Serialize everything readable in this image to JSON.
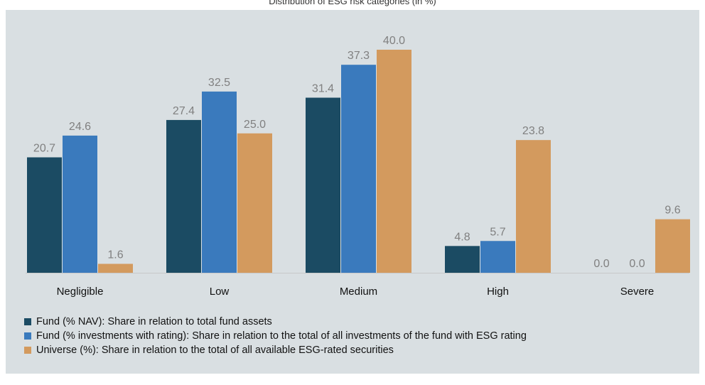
{
  "header": {
    "caption": "Distribution of ESG risk categories (in %)"
  },
  "chart_data": {
    "type": "bar",
    "categories": [
      "Negligible",
      "Low",
      "Medium",
      "High",
      "Severe"
    ],
    "series": [
      {
        "name": "Fund (% NAV): Share in relation to total fund assets",
        "color": "#1b4b63",
        "values": [
          20.7,
          27.4,
          31.4,
          4.8,
          0.0
        ],
        "labels": [
          "20.7",
          "27.4",
          "31.4",
          "4.8",
          "0.0"
        ]
      },
      {
        "name": "Fund (% investments with rating): Share in relation to the total of all investments of the fund with ESG rating",
        "color": "#3a7abd",
        "values": [
          24.6,
          32.5,
          37.3,
          5.7,
          0.0
        ],
        "labels": [
          "24.6",
          "32.5",
          "37.3",
          "5.7",
          "0.0"
        ]
      },
      {
        "name": "Universe (%): Share in relation to the total of all available ESG-rated securities",
        "color": "#d39a5e",
        "values": [
          1.6,
          25.0,
          40.0,
          23.8,
          9.6
        ],
        "labels": [
          "1.6",
          "25.0",
          "40.0",
          "23.8",
          "9.6"
        ]
      }
    ],
    "ylim": [
      0,
      40
    ],
    "grid": false,
    "legend_position": "bottom-left",
    "label_color": "#808080",
    "axis_color": "#c8c8c8"
  }
}
